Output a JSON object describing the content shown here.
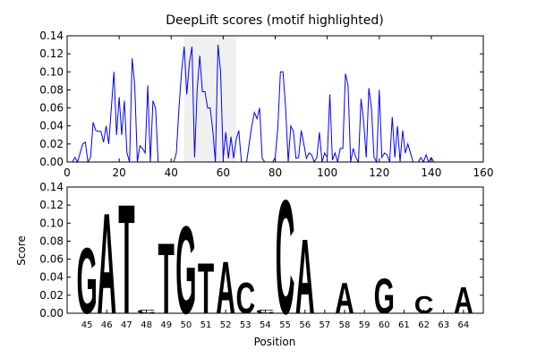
{
  "chart_data": [
    {
      "type": "line",
      "title": "DeepLift scores (motif highlighted)",
      "x": [
        0,
        1,
        2,
        3,
        4,
        5,
        6,
        7,
        8,
        9,
        10,
        11,
        12,
        13,
        14,
        15,
        16,
        17,
        18,
        19,
        20,
        21,
        22,
        23,
        24,
        25,
        26,
        27,
        28,
        29,
        30,
        31,
        32,
        33,
        34,
        35,
        36,
        37,
        38,
        39,
        40,
        41,
        42,
        43,
        44,
        45,
        46,
        47,
        48,
        49,
        50,
        51,
        52,
        53,
        54,
        55,
        56,
        57,
        58,
        59,
        60,
        61,
        62,
        63,
        64,
        65,
        66,
        67,
        68,
        69,
        70,
        71,
        72,
        73,
        74,
        75,
        76,
        77,
        78,
        79,
        80,
        81,
        82,
        83,
        84,
        85,
        86,
        87,
        88,
        89,
        90,
        91,
        92,
        93,
        94,
        95,
        96,
        97,
        98,
        99,
        100,
        101,
        102,
        103,
        104,
        105,
        106,
        107,
        108,
        109,
        110,
        111,
        112,
        113,
        114,
        115,
        116,
        117,
        118,
        119,
        120,
        121,
        122,
        123,
        124,
        125,
        126,
        127,
        128,
        129,
        130,
        131,
        132,
        133,
        134,
        135,
        136,
        137,
        138,
        139,
        140,
        141,
        142,
        143,
        144,
        145
      ],
      "series": [
        {
          "color": "#0000ff",
          "values": [
            0,
            0,
            0,
            0.005,
            0,
            0.01,
            0.02,
            0.022,
            0,
            0.005,
            0.044,
            0.035,
            0.034,
            0.034,
            0.022,
            0.04,
            0.02,
            0.06,
            0.1,
            0.03,
            0.072,
            0.03,
            0.068,
            0.01,
            0,
            0.115,
            0.085,
            0,
            0.018,
            0.015,
            0.01,
            0.085,
            0,
            0.068,
            0.06,
            0,
            0,
            0,
            0,
            0,
            0,
            0,
            0.01,
            0.06,
            0.1,
            0.128,
            0.075,
            0.11,
            0.128,
            0.005,
            0.08,
            0.118,
            0.078,
            0.078,
            0.06,
            0.06,
            0.035,
            0,
            0.13,
            0.1,
            0.004,
            0.033,
            0.004,
            0.028,
            0.004,
            0.025,
            0.035,
            0,
            0,
            0,
            0.02,
            0.04,
            0.055,
            0.048,
            0.06,
            0.004,
            0,
            0,
            0,
            0,
            0.005,
            0.038,
            0.1,
            0.1,
            0.06,
            0,
            0.04,
            0.034,
            0.004,
            0.005,
            0.035,
            0.02,
            0.004,
            0.01,
            0.008,
            0,
            0.005,
            0.033,
            0,
            0.01,
            0.005,
            0.075,
            0.002,
            0.01,
            0,
            0.015,
            0.015,
            0.098,
            0.085,
            0,
            0.015,
            0.005,
            0,
            0.07,
            0.045,
            0.005,
            0.082,
            0.06,
            0.005,
            0,
            0.08,
            0.005,
            0.01,
            0.008,
            0,
            0.05,
            0.005,
            0.04,
            0,
            0.035,
            0.01,
            0.02,
            0.01,
            0,
            0,
            0,
            0.005,
            0,
            0.008,
            0,
            0.005,
            0,
            0,
            0,
            0,
            0
          ]
        }
      ],
      "highlight": [
        45,
        65
      ],
      "highlight_color": "#f0f0f0",
      "xlim": [
        0,
        160
      ],
      "xticks": [
        0,
        20,
        40,
        60,
        80,
        100,
        120,
        140,
        160
      ],
      "ylim": [
        0,
        0.14
      ],
      "yticks": [
        {
          "value": 0,
          "label": "0.00"
        },
        0.02,
        0.04,
        0.06,
        0.08,
        {
          "value": 0.1,
          "label": "0.10"
        },
        0.12,
        0.14
      ]
    },
    {
      "type": "logo",
      "xlabel": "Position",
      "ylabel": "Score",
      "x": [
        45,
        46,
        47,
        48,
        49,
        50,
        51,
        52,
        53,
        54,
        55,
        56,
        57,
        58,
        59,
        60,
        61,
        62,
        63,
        64
      ],
      "series": [
        {
          "name": "A",
          "color": "#008000",
          "values": [
            0,
            0.115,
            0,
            0,
            0,
            0,
            0,
            0.06,
            0,
            0,
            0,
            0.085,
            0,
            0.035,
            0,
            0,
            0,
            0,
            0,
            0.03
          ]
        },
        {
          "name": "C",
          "color": "#0000ff",
          "values": [
            0,
            0,
            0,
            0.004,
            0,
            0,
            0,
            0,
            0.035,
            0.004,
            0.13,
            0,
            0,
            0,
            0,
            0,
            0,
            0.02,
            0,
            0
          ]
        },
        {
          "name": "G",
          "color": "#ffa500",
          "values": [
            0.075,
            0,
            0,
            0,
            0,
            0.1,
            0,
            0,
            0,
            0,
            0,
            0,
            0,
            0,
            0,
            0.04,
            0,
            0,
            0,
            0
          ]
        },
        {
          "name": "T",
          "color": "#ff0000",
          "values": [
            0,
            0,
            0.125,
            0,
            0.08,
            0,
            0.058,
            0,
            0,
            0,
            0,
            0,
            0,
            0,
            0,
            0,
            0,
            0,
            0,
            0
          ]
        }
      ],
      "xlim": [
        44,
        65
      ],
      "xticks": [
        45,
        46,
        47,
        48,
        49,
        50,
        51,
        52,
        53,
        54,
        55,
        56,
        57,
        58,
        59,
        60,
        61,
        62,
        63,
        64
      ],
      "ylim": [
        0,
        0.14
      ],
      "yticks": [
        {
          "value": 0,
          "label": "0.00"
        },
        0.02,
        0.04,
        0.06,
        0.08,
        {
          "value": 0.1,
          "label": "0.10"
        },
        0.12,
        0.14
      ]
    }
  ]
}
